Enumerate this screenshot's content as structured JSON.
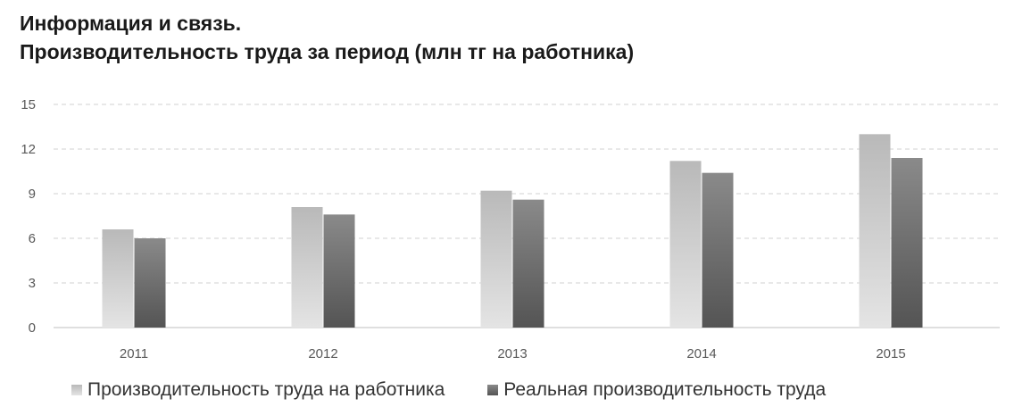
{
  "title": {
    "line1": "Информация и связь.",
    "line2": "Производительность  труда за период (млн тг на работника)"
  },
  "chart_data": {
    "type": "bar",
    "categories": [
      "2011",
      "2012",
      "2013",
      "2014",
      "2015"
    ],
    "series": [
      {
        "name": "Производительность труда на работника",
        "values": [
          6.6,
          8.1,
          9.2,
          11.2,
          13.0
        ],
        "color": "#c8c8c8"
      },
      {
        "name": "Реальная производительность труда",
        "values": [
          6.0,
          7.6,
          8.6,
          10.4,
          11.4
        ],
        "color": "#6e6e6e"
      }
    ],
    "y_ticks": [
      "0",
      "3",
      "6",
      "9",
      "12",
      "15"
    ],
    "ylim": [
      0,
      15
    ],
    "grid": true,
    "legend_position": "bottom"
  }
}
